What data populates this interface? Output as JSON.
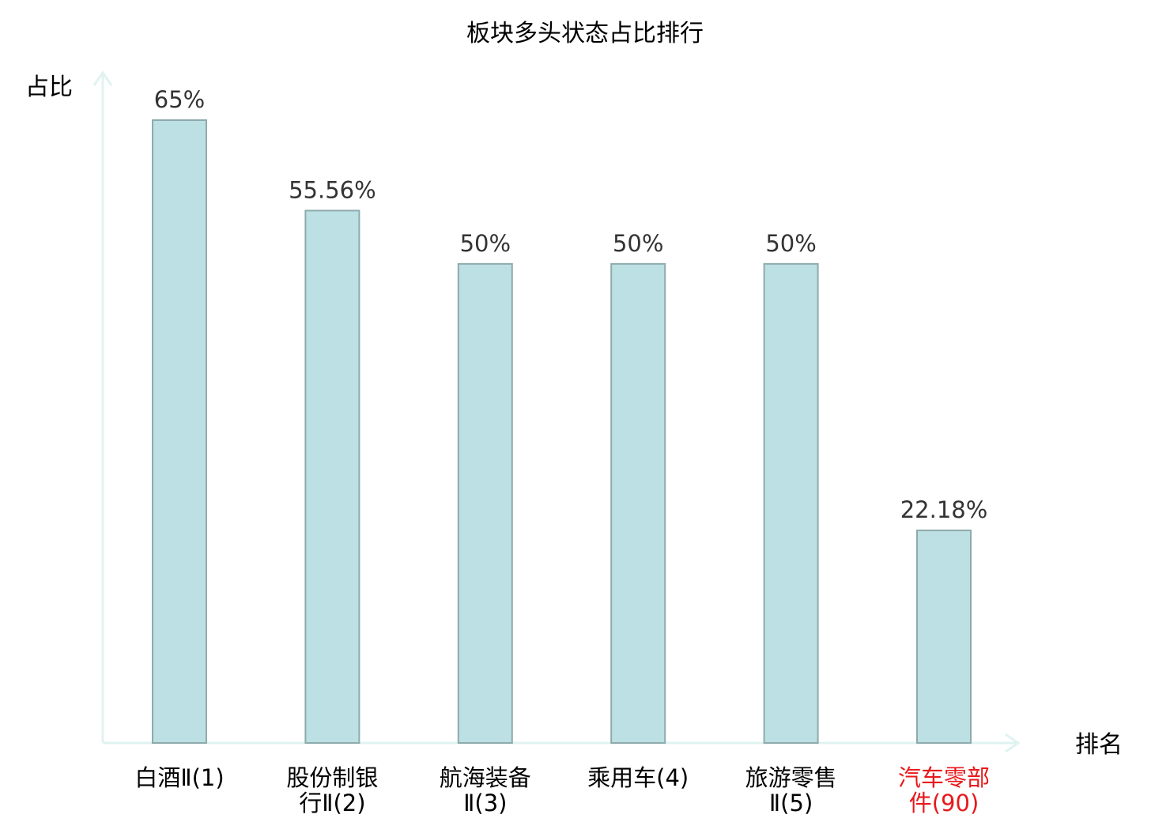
{
  "chart_data": {
    "type": "bar",
    "title": "板块多头状态占比排行",
    "ylabel": "占比",
    "xlabel": "排名",
    "ylim": [
      0,
      72
    ],
    "grid": false,
    "categories": [
      [
        "白酒Ⅱ(1)"
      ],
      [
        "股份制银",
        "行Ⅱ(2)"
      ],
      [
        "航海装备",
        "Ⅱ(3)"
      ],
      [
        "乘用车(4)"
      ],
      [
        "旅游零售",
        "Ⅱ(5)"
      ],
      [
        "汽车零部",
        "件(90)"
      ]
    ],
    "values": [
      65,
      55.56,
      50,
      50,
      50,
      22.18
    ],
    "value_labels": [
      "65%",
      "55.56%",
      "50%",
      "50%",
      "50%",
      "22.18%"
    ],
    "highlight_index": 5
  },
  "colors": {
    "bar_fill": "#bce0e3",
    "bar_stroke": "#8faaac",
    "axis": "#e0f3f1",
    "highlight_text": "#e8191b",
    "value_text": "#333333"
  }
}
